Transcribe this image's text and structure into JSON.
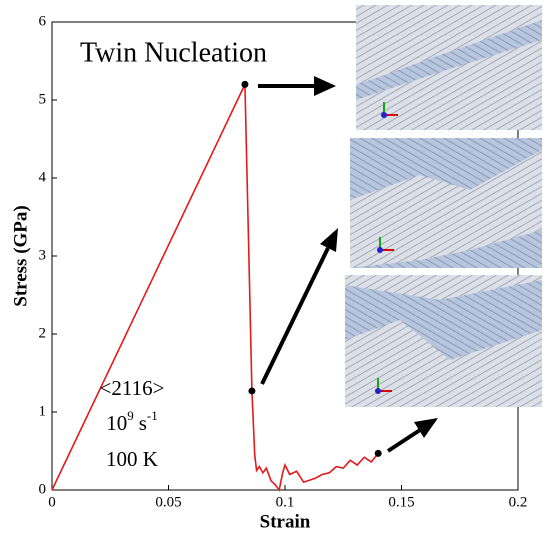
{
  "chart_data": {
    "type": "line",
    "xlabel": "Strain",
    "ylabel": "Stress (GPa)",
    "annotations": {
      "event": "Twin Nucleation",
      "orientation": "<2116>",
      "rate_mantissa": "10",
      "rate_exponent": "9",
      "rate_unit": "s",
      "rate_unit_exponent": "-1",
      "temperature": "100 K"
    },
    "x": [
      0,
      0.0828,
      0.0845,
      0.0858,
      0.0865,
      0.087,
      0.0878,
      0.089,
      0.0905,
      0.092,
      0.094,
      0.096,
      0.0975,
      0.099,
      0.1,
      0.102,
      0.105,
      0.108,
      0.11,
      0.113,
      0.116,
      0.119,
      0.122,
      0.125,
      0.128,
      0.131,
      0.134,
      0.137,
      0.14
    ],
    "values": [
      0,
      5.2,
      3.0,
      1.27,
      0.8,
      0.45,
      0.25,
      0.3,
      0.22,
      0.28,
      0.12,
      0.06,
      0,
      0.22,
      0.32,
      0.2,
      0.24,
      0.1,
      0.12,
      0.15,
      0.2,
      0.22,
      0.3,
      0.28,
      0.38,
      0.32,
      0.42,
      0.36,
      0.47
    ],
    "color": "#e41a1c",
    "markers": [
      {
        "x": 0.0828,
        "y": 5.2
      },
      {
        "x": 0.0858,
        "y": 1.27
      },
      {
        "x": 0.14,
        "y": 0.47
      }
    ],
    "xlim": [
      0,
      0.2
    ],
    "ylim": [
      0,
      6
    ],
    "xticks": [
      0,
      0.05,
      0.1,
      0.15,
      0.2
    ],
    "yticks": [
      0,
      1,
      2,
      3,
      4,
      5,
      6
    ]
  }
}
